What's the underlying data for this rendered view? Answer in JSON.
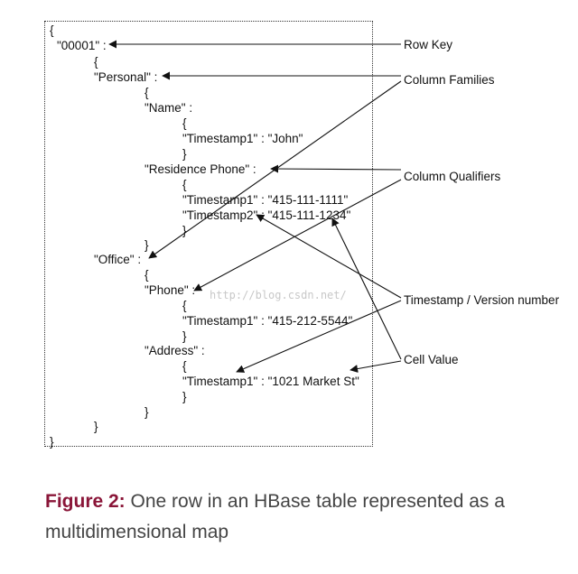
{
  "code_lines": [
    "{",
    "\"00001\" :",
    "{",
    "\"Personal\" :",
    "{",
    "\"Name\" :",
    "{",
    "\"Timestamp1\" : \"John\"",
    "}",
    "\"Residence Phone\" :",
    "{",
    "\"Timestamp1\" : \"415-111-1111\"",
    "\"Timestamp2\" : \"415-111-1234\"",
    "}",
    "}",
    "\"Office\" :",
    "{",
    "\"Phone\" :",
    "{",
    "\"Timestamp1\" : \"415-212-5544\"",
    "}",
    "\"Address\" :",
    "{",
    "\"Timestamp1\" : \"1021 Market St\"",
    "}",
    "}",
    "}",
    "}"
  ],
  "labels": {
    "row_key": "Row Key",
    "column_families": "Column Families",
    "column_qualifiers": "Column Qualifiers",
    "timestamp": "Timestamp / Version number",
    "cell_value": "Cell Value"
  },
  "watermark": "http://blog.csdn.net/",
  "caption": {
    "figure": "Figure 2:",
    "text": " One row in an HBase table represented as a multidimensional map"
  }
}
